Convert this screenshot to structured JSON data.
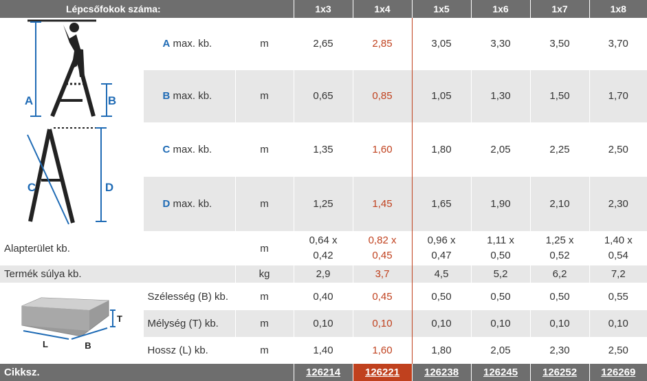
{
  "header": {
    "label": "Lépcsőfokok száma:",
    "columns": [
      "1x3",
      "1x4",
      "1x5",
      "1x6",
      "1x7",
      "1x8"
    ]
  },
  "highlight_color": "#c0411e",
  "accent_color": "#1f6bb5",
  "rows": {
    "A": {
      "letter": "A",
      "suffix": "max. kb.",
      "unit": "m",
      "values": [
        "2,65",
        "2,85",
        "3,05",
        "3,30",
        "3,50",
        "3,70"
      ]
    },
    "B": {
      "letter": "B",
      "suffix": "max. kb.",
      "unit": "m",
      "values": [
        "0,65",
        "0,85",
        "1,05",
        "1,30",
        "1,50",
        "1,70"
      ]
    },
    "C": {
      "letter": "C",
      "suffix": "max. kb.",
      "unit": "m",
      "values": [
        "1,35",
        "1,60",
        "1,80",
        "2,05",
        "2,25",
        "2,50"
      ]
    },
    "D": {
      "letter": "D",
      "suffix": "max. kb.",
      "unit": "m",
      "values": [
        "1,25",
        "1,45",
        "1,65",
        "1,90",
        "2,10",
        "2,30"
      ]
    },
    "area": {
      "label": "Alapterület kb.",
      "unit": "m",
      "line1": [
        "0,64 x",
        "0,82 x",
        "0,96 x",
        "1,11 x",
        "1,25 x",
        "1,40 x"
      ],
      "line2": [
        "0,42",
        "0,45",
        "0,47",
        "0,50",
        "0,52",
        "0,54"
      ]
    },
    "weight": {
      "label": "Termék súlya kb.",
      "unit": "kg",
      "values": [
        "2,9",
        "3,7",
        "4,5",
        "5,2",
        "6,2",
        "7,2"
      ]
    },
    "width": {
      "label": "Szélesség (B) kb.",
      "unit": "m",
      "values": [
        "0,40",
        "0,45",
        "0,50",
        "0,50",
        "0,50",
        "0,55"
      ]
    },
    "depth": {
      "label": "Mélység (T) kb.",
      "unit": "m",
      "values": [
        "0,10",
        "0,10",
        "0,10",
        "0,10",
        "0,10",
        "0,10"
      ]
    },
    "length": {
      "label": "Hossz (L) kb.",
      "unit": "m",
      "values": [
        "1,40",
        "1,60",
        "1,80",
        "2,05",
        "2,30",
        "2,50"
      ]
    }
  },
  "footer": {
    "label": "Cikksz.",
    "codes": [
      "126214",
      "126221",
      "126238",
      "126245",
      "126252",
      "126269"
    ]
  },
  "diagram": {
    "labels": {
      "A": "A",
      "B": "B",
      "C": "C",
      "D": "D",
      "T": "T",
      "L": "L",
      "Bbox": "B"
    }
  }
}
